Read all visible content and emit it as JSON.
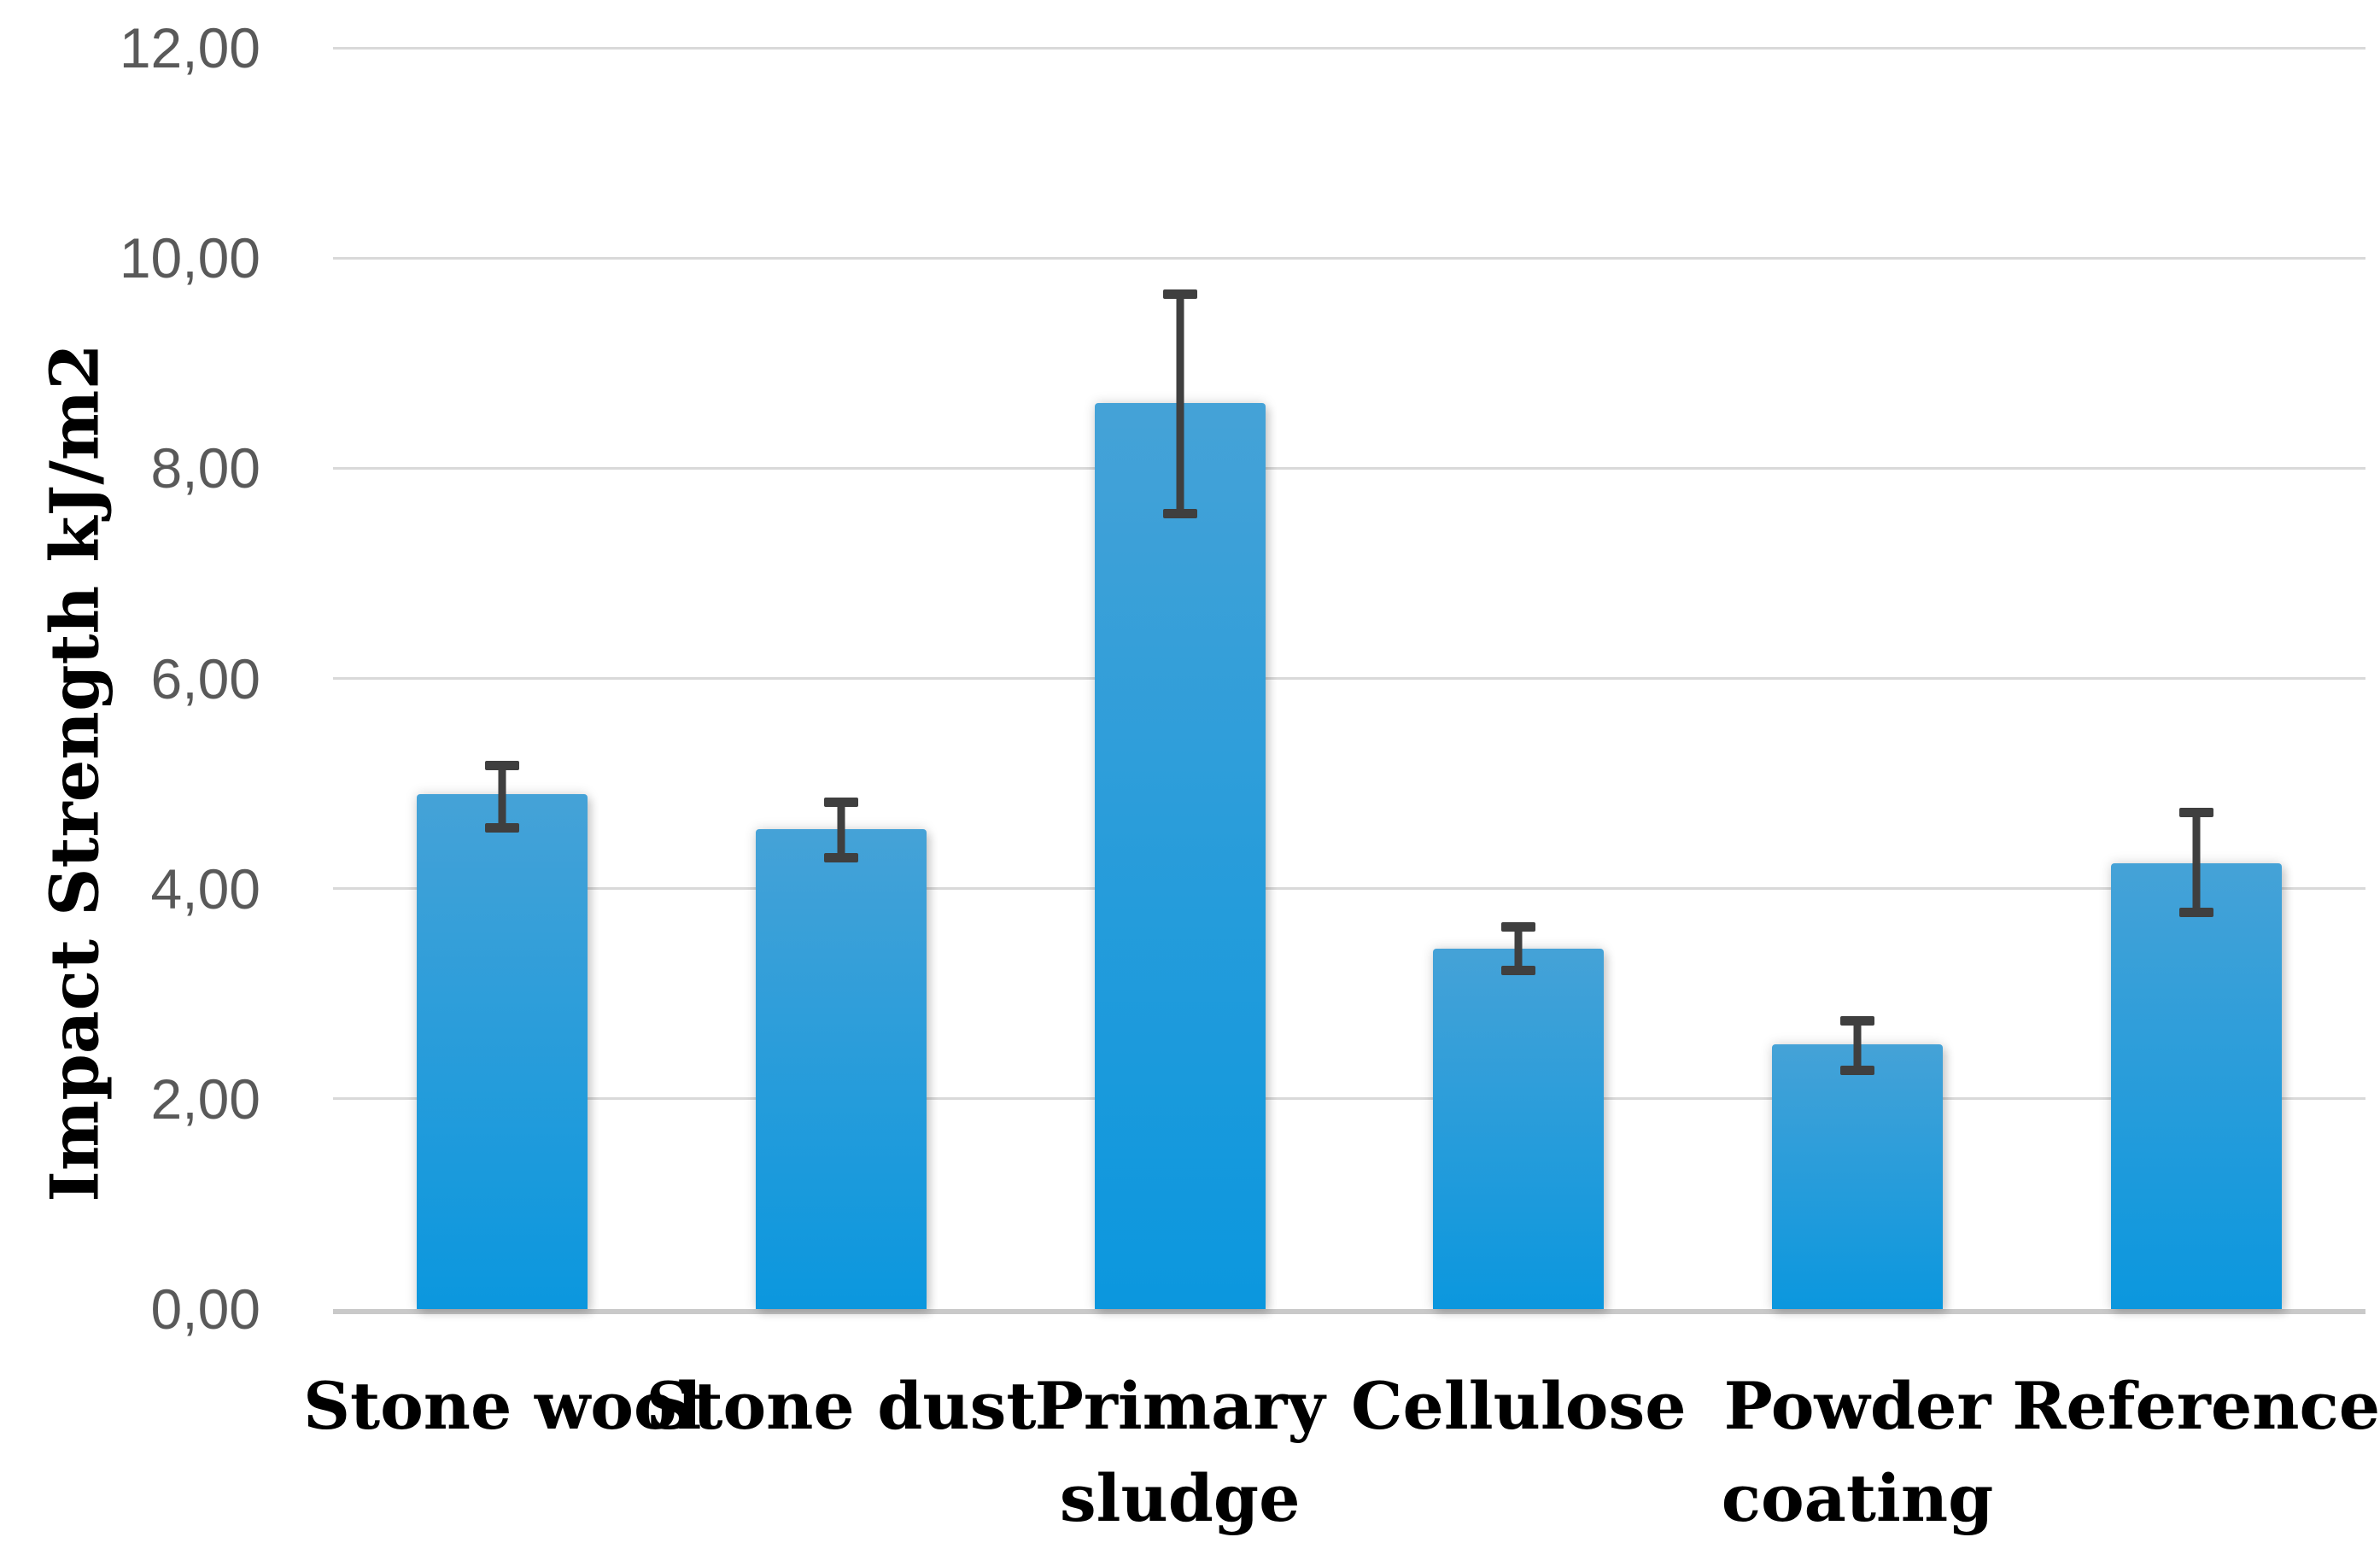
{
  "chart_data": {
    "type": "bar",
    "title": "",
    "xlabel": "",
    "ylabel": "Impact Strength kJ/m2",
    "ylim": [
      0,
      12
    ],
    "ytick_step": 2,
    "decimal_separator": ",",
    "grid": true,
    "legend": null,
    "yticks": [
      {
        "value": 0,
        "label": "0,00"
      },
      {
        "value": 2,
        "label": "2,00"
      },
      {
        "value": 4,
        "label": "4,00"
      },
      {
        "value": 6,
        "label": "6,00"
      },
      {
        "value": 8,
        "label": "8,00"
      },
      {
        "value": 10,
        "label": "10,00"
      },
      {
        "value": 12,
        "label": "12,00"
      }
    ],
    "categories": [
      "Stone wool",
      "Stone dust",
      "Primary sludge",
      "Cellulose",
      "Powder coating",
      "Reference"
    ],
    "series": [
      {
        "name": "Impact Strength",
        "values": [
          4.9,
          4.57,
          8.62,
          3.43,
          2.52,
          4.24
        ],
        "error_low": [
          4.53,
          4.25,
          7.52,
          3.18,
          2.23,
          3.73
        ],
        "error_high": [
          5.22,
          4.87,
          9.7,
          3.68,
          2.79,
          4.77
        ]
      }
    ]
  },
  "colors": {
    "bar_gradient_top": "#45A2D7",
    "bar_gradient_bottom": "#0B97DE",
    "gridline": "#D9D9D9",
    "axis_baseline": "#C9C9C9",
    "error_bar": "#3F3F3F",
    "tick_text": "#595959",
    "category_text": "#000000"
  }
}
